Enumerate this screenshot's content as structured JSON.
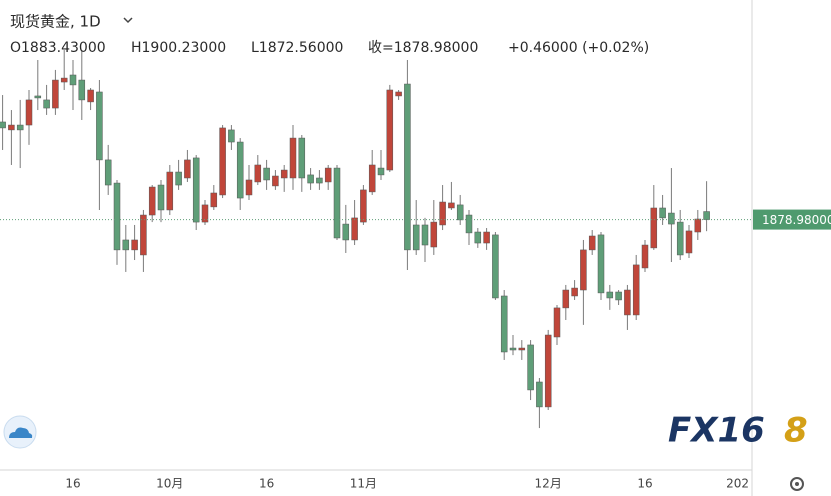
{
  "chart_data": {
    "type": "candlestick",
    "title": "现货黄金, 1D",
    "header": [
      "O1883.43000",
      "H1900.23000",
      "L1872.56000",
      "收=1878.98000",
      "+0.46000 (+0.02%)"
    ],
    "last_price_label": "1878.98000",
    "watermark": [
      "FX16",
      "8"
    ],
    "up_color": "#c0463a",
    "down_color": "#5f9e78",
    "ylim": [
      1741.5,
      2000.5
    ],
    "categories": [
      null,
      null,
      null,
      null,
      null,
      null,
      null,
      null,
      "16",
      null,
      null,
      null,
      null,
      null,
      null,
      null,
      null,
      null,
      null,
      "10月",
      null,
      null,
      null,
      null,
      null,
      null,
      null,
      null,
      null,
      null,
      "16",
      null,
      null,
      null,
      null,
      null,
      null,
      null,
      null,
      null,
      null,
      "11月",
      null,
      null,
      null,
      null,
      null,
      null,
      null,
      null,
      null,
      null,
      null,
      null,
      null,
      null,
      null,
      null,
      null,
      null,
      null,
      null,
      "12月",
      null,
      null,
      null,
      null,
      null,
      null,
      null,
      null,
      null,
      null,
      "16",
      null,
      null,
      null,
      null,
      null,
      null,
      null,
      null,
      null,
      null,
      null,
      "202"
    ],
    "open": [
      1933.0,
      1928.6,
      1931.3,
      1931.3,
      1947.4,
      1945.2,
      1940.7,
      1955.1,
      1959.0,
      1956.2,
      1944.1,
      1949.6,
      1912.0,
      1899.2,
      1867.7,
      1862.2,
      1859.4,
      1881.5,
      1898.1,
      1884.3,
      1905.3,
      1902.0,
      1913.1,
      1877.6,
      1886.0,
      1892.6,
      1928.6,
      1921.9,
      1892.6,
      1899.8,
      1907.5,
      1897.6,
      1902.0,
      1902.0,
      1924.1,
      1903.7,
      1902.0,
      1899.8,
      1907.5,
      1876.5,
      1867.7,
      1877.6,
      1894.3,
      1907.5,
      1906.4,
      1947.4,
      1954.0,
      1876.0,
      1876.0,
      1863.8,
      1876.0,
      1885.4,
      1887.1,
      1881.5,
      1872.1,
      1866.0,
      1870.5,
      1836.7,
      1807.9,
      1806.8,
      1809.6,
      1789.1,
      1775.3,
      1814.0,
      1830.1,
      1836.7,
      1840.0,
      1862.2,
      1870.5,
      1838.9,
      1838.9,
      1826.2,
      1826.2,
      1852.2,
      1863.3,
      1885.4,
      1882.6,
      1877.6,
      1860.5,
      1872.1,
      1883.43,
      null,
      null,
      null,
      null,
      null
    ],
    "high": [
      1947.9,
      1939.6,
      1945.2,
      1950.7,
      1967.3,
      1953.5,
      1961.8,
      1972.8,
      1967.3,
      1972.8,
      1951.8,
      1956.2,
      1920.3,
      1900.9,
      1876.0,
      1876.0,
      1884.3,
      1898.1,
      1900.9,
      1909.2,
      1912.0,
      1917.5,
      1914.7,
      1889.8,
      1898.1,
      1931.3,
      1931.3,
      1924.1,
      1909.2,
      1914.7,
      1912.0,
      1906.4,
      1909.2,
      1931.3,
      1925.8,
      1907.5,
      1906.4,
      1909.2,
      1909.2,
      1887.1,
      1889.8,
      1898.1,
      1917.5,
      1917.5,
      1953.5,
      1950.7,
      1967.3,
      1889.8,
      1879.9,
      1889.8,
      1898.1,
      1899.8,
      1892.6,
      1884.3,
      1874.3,
      1874.3,
      1872.1,
      1840.0,
      1815.1,
      1812.3,
      1812.3,
      1791.3,
      1817.9,
      1831.7,
      1842.8,
      1845.5,
      1867.7,
      1873.2,
      1872.1,
      1842.8,
      1840.0,
      1842.8,
      1859.4,
      1867.7,
      1898.1,
      1892.6,
      1907.5,
      1884.3,
      1876.0,
      1884.3,
      1900.23,
      null,
      null,
      null,
      null,
      null
    ],
    "low": [
      1917.5,
      1909.2,
      1907.5,
      1920.3,
      1939.6,
      1936.9,
      1936.9,
      1950.7,
      1939.6,
      1934.1,
      1939.6,
      1884.3,
      1892.6,
      1853.9,
      1850.0,
      1856.6,
      1850.0,
      1877.6,
      1877.6,
      1881.5,
      1895.4,
      1899.8,
      1873.2,
      1876.0,
      1884.3,
      1890.9,
      1917.5,
      1884.3,
      1889.8,
      1898.1,
      1895.4,
      1895.4,
      1894.3,
      1895.4,
      1894.3,
      1895.4,
      1895.4,
      1895.4,
      1867.7,
      1860.5,
      1864.9,
      1876.0,
      1892.6,
      1900.9,
      1905.3,
      1945.2,
      1851.1,
      1859.4,
      1855.5,
      1859.4,
      1873.2,
      1884.3,
      1876.0,
      1864.9,
      1863.3,
      1862.2,
      1834.5,
      1801.3,
      1804.0,
      1801.3,
      1779.1,
      1763.6,
      1773.6,
      1809.6,
      1823.4,
      1834.5,
      1820.7,
      1859.4,
      1834.5,
      1829.0,
      1831.7,
      1817.9,
      1823.4,
      1850.0,
      1862.2,
      1876.0,
      1855.5,
      1856.6,
      1857.7,
      1867.7,
      1872.56,
      null,
      null,
      null,
      null,
      null
    ],
    "close": [
      1929.7,
      1931.3,
      1928.6,
      1945.2,
      1946.3,
      1940.7,
      1956.2,
      1957.3,
      1953.5,
      1945.2,
      1950.7,
      1912.0,
      1898.1,
      1862.2,
      1862.2,
      1867.7,
      1881.5,
      1897.0,
      1884.3,
      1905.3,
      1898.1,
      1912.0,
      1877.6,
      1887.1,
      1893.7,
      1929.7,
      1921.9,
      1890.9,
      1900.9,
      1909.2,
      1900.9,
      1903.1,
      1906.4,
      1924.1,
      1902.0,
      1899.2,
      1899.2,
      1907.5,
      1868.8,
      1867.7,
      1879.9,
      1895.4,
      1909.2,
      1903.7,
      1950.7,
      1949.6,
      1862.2,
      1862.2,
      1864.9,
      1877.6,
      1888.7,
      1888.2,
      1878.8,
      1871.6,
      1866.0,
      1872.1,
      1835.6,
      1805.7,
      1806.8,
      1807.9,
      1784.7,
      1775.3,
      1815.1,
      1830.1,
      1840.0,
      1841.1,
      1862.2,
      1869.9,
      1838.4,
      1835.6,
      1834.5,
      1840.0,
      1853.9,
      1864.9,
      1885.4,
      1879.9,
      1876.5,
      1859.4,
      1872.7,
      1879.3,
      1878.98,
      null,
      null,
      null,
      null,
      null
    ]
  }
}
